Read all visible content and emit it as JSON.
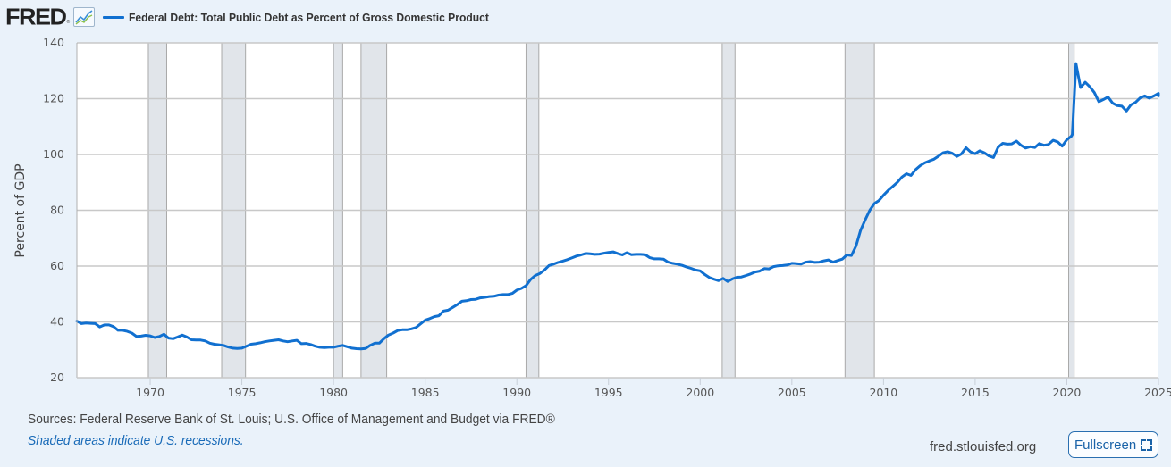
{
  "header": {
    "logo_text": "FRED",
    "logo_reg": "®",
    "logo_icon": "line-chart-icon",
    "legend_label": "Federal Debt: Total Public Debt as Percent of Gross Domestic Product",
    "series_color": "#1170d0"
  },
  "footer": {
    "sources": "Sources: Federal Reserve Bank of St. Louis; U.S. Office of Management and Budget via FRED®",
    "shaded_note": "Shaded areas indicate U.S. recessions.",
    "site": "fred.stlouisfed.org",
    "fullscreen_label": "Fullscreen",
    "fullscreen_icon": "expand-icon"
  },
  "chart_data": {
    "type": "line",
    "title": "Federal Debt: Total Public Debt as Percent of Gross Domestic Product",
    "xlabel": "",
    "ylabel": "Percent of GDP",
    "xlim": [
      1966,
      2025
    ],
    "ylim": [
      20,
      140
    ],
    "yticks": [
      20,
      40,
      60,
      80,
      100,
      120,
      140
    ],
    "xticks": [
      1970,
      1975,
      1980,
      1985,
      1990,
      1995,
      2000,
      2005,
      2010,
      2015,
      2020,
      2025
    ],
    "grid": "horizontal",
    "legend": "top-left",
    "recessions": [
      [
        1969.9,
        1970.9
      ],
      [
        1973.9,
        1975.2
      ],
      [
        1980.0,
        1980.5
      ],
      [
        1981.5,
        1982.9
      ],
      [
        1990.5,
        1991.2
      ],
      [
        2001.2,
        2001.9
      ],
      [
        2007.9,
        2009.5
      ],
      [
        2020.1,
        2020.4
      ]
    ],
    "series": [
      {
        "name": "Federal Debt: Total Public Debt as Percent of Gross Domestic Product",
        "color": "#1170d0",
        "points": [
          [
            1966.0,
            40.3
          ],
          [
            1966.25,
            39.4
          ],
          [
            1966.5,
            39.6
          ],
          [
            1966.75,
            39.5
          ],
          [
            1967.0,
            39.4
          ],
          [
            1967.25,
            38.2
          ],
          [
            1967.5,
            38.9
          ],
          [
            1967.75,
            38.9
          ],
          [
            1968.0,
            38.3
          ],
          [
            1968.25,
            37.0
          ],
          [
            1968.5,
            37.0
          ],
          [
            1968.75,
            36.6
          ],
          [
            1969.0,
            36.0
          ],
          [
            1969.25,
            34.8
          ],
          [
            1969.5,
            34.9
          ],
          [
            1969.75,
            35.2
          ],
          [
            1970.0,
            35.0
          ],
          [
            1970.25,
            34.4
          ],
          [
            1970.5,
            34.8
          ],
          [
            1970.75,
            35.6
          ],
          [
            1971.0,
            34.2
          ],
          [
            1971.25,
            34.0
          ],
          [
            1971.5,
            34.6
          ],
          [
            1971.75,
            35.3
          ],
          [
            1972.0,
            34.6
          ],
          [
            1972.25,
            33.6
          ],
          [
            1972.5,
            33.5
          ],
          [
            1972.75,
            33.5
          ],
          [
            1973.0,
            33.2
          ],
          [
            1973.25,
            32.4
          ],
          [
            1973.5,
            32.0
          ],
          [
            1973.75,
            31.8
          ],
          [
            1974.0,
            31.6
          ],
          [
            1974.25,
            31.0
          ],
          [
            1974.5,
            30.6
          ],
          [
            1974.75,
            30.5
          ],
          [
            1975.0,
            30.6
          ],
          [
            1975.25,
            31.3
          ],
          [
            1975.5,
            32.0
          ],
          [
            1975.75,
            32.2
          ],
          [
            1976.0,
            32.5
          ],
          [
            1976.25,
            32.9
          ],
          [
            1976.5,
            33.2
          ],
          [
            1976.75,
            33.4
          ],
          [
            1977.0,
            33.6
          ],
          [
            1977.25,
            33.2
          ],
          [
            1977.5,
            32.9
          ],
          [
            1977.75,
            33.2
          ],
          [
            1978.0,
            33.4
          ],
          [
            1978.25,
            32.2
          ],
          [
            1978.5,
            32.3
          ],
          [
            1978.75,
            31.9
          ],
          [
            1979.0,
            31.3
          ],
          [
            1979.25,
            30.9
          ],
          [
            1979.5,
            30.8
          ],
          [
            1979.75,
            30.9
          ],
          [
            1980.0,
            30.9
          ],
          [
            1980.25,
            31.3
          ],
          [
            1980.5,
            31.6
          ],
          [
            1980.75,
            31.1
          ],
          [
            1981.0,
            30.6
          ],
          [
            1981.25,
            30.4
          ],
          [
            1981.5,
            30.3
          ],
          [
            1981.75,
            30.5
          ],
          [
            1982.0,
            31.6
          ],
          [
            1982.25,
            32.4
          ],
          [
            1982.5,
            32.4
          ],
          [
            1982.75,
            34.0
          ],
          [
            1983.0,
            35.3
          ],
          [
            1983.25,
            36.0
          ],
          [
            1983.5,
            36.9
          ],
          [
            1983.75,
            37.2
          ],
          [
            1984.0,
            37.2
          ],
          [
            1984.25,
            37.5
          ],
          [
            1984.5,
            38.0
          ],
          [
            1984.75,
            39.3
          ],
          [
            1985.0,
            40.6
          ],
          [
            1985.25,
            41.2
          ],
          [
            1985.5,
            41.9
          ],
          [
            1985.75,
            42.2
          ],
          [
            1986.0,
            43.9
          ],
          [
            1986.25,
            44.2
          ],
          [
            1986.5,
            45.2
          ],
          [
            1986.75,
            46.2
          ],
          [
            1987.0,
            47.4
          ],
          [
            1987.25,
            47.6
          ],
          [
            1987.5,
            48.0
          ],
          [
            1987.75,
            48.1
          ],
          [
            1988.0,
            48.6
          ],
          [
            1988.25,
            48.8
          ],
          [
            1988.5,
            49.1
          ],
          [
            1988.75,
            49.2
          ],
          [
            1989.0,
            49.6
          ],
          [
            1989.25,
            49.8
          ],
          [
            1989.5,
            49.8
          ],
          [
            1989.75,
            50.2
          ],
          [
            1990.0,
            51.4
          ],
          [
            1990.25,
            52.0
          ],
          [
            1990.5,
            53.0
          ],
          [
            1990.75,
            55.2
          ],
          [
            1991.0,
            56.6
          ],
          [
            1991.25,
            57.3
          ],
          [
            1991.5,
            58.6
          ],
          [
            1991.75,
            60.2
          ],
          [
            1992.0,
            60.7
          ],
          [
            1992.25,
            61.3
          ],
          [
            1992.5,
            61.8
          ],
          [
            1992.75,
            62.3
          ],
          [
            1993.0,
            62.9
          ],
          [
            1993.25,
            63.6
          ],
          [
            1993.5,
            64.0
          ],
          [
            1993.75,
            64.5
          ],
          [
            1994.0,
            64.4
          ],
          [
            1994.25,
            64.2
          ],
          [
            1994.5,
            64.3
          ],
          [
            1994.75,
            64.6
          ],
          [
            1995.0,
            64.9
          ],
          [
            1995.25,
            65.1
          ],
          [
            1995.5,
            64.5
          ],
          [
            1995.75,
            64.0
          ],
          [
            1996.0,
            64.8
          ],
          [
            1996.25,
            64.1
          ],
          [
            1996.5,
            64.2
          ],
          [
            1996.75,
            64.2
          ],
          [
            1997.0,
            64.1
          ],
          [
            1997.25,
            63.0
          ],
          [
            1997.5,
            62.6
          ],
          [
            1997.75,
            62.6
          ],
          [
            1998.0,
            62.5
          ],
          [
            1998.25,
            61.4
          ],
          [
            1998.5,
            61.0
          ],
          [
            1998.75,
            60.7
          ],
          [
            1999.0,
            60.3
          ],
          [
            1999.25,
            59.7
          ],
          [
            1999.5,
            59.2
          ],
          [
            1999.75,
            58.6
          ],
          [
            2000.0,
            58.3
          ],
          [
            2000.25,
            57.0
          ],
          [
            2000.5,
            55.9
          ],
          [
            2000.75,
            55.3
          ],
          [
            2001.0,
            54.8
          ],
          [
            2001.25,
            55.6
          ],
          [
            2001.5,
            54.5
          ],
          [
            2001.75,
            55.4
          ],
          [
            2002.0,
            56.0
          ],
          [
            2002.25,
            56.1
          ],
          [
            2002.5,
            56.6
          ],
          [
            2002.75,
            57.2
          ],
          [
            2003.0,
            57.9
          ],
          [
            2003.25,
            58.2
          ],
          [
            2003.5,
            59.1
          ],
          [
            2003.75,
            59.0
          ],
          [
            2004.0,
            59.8
          ],
          [
            2004.25,
            60.1
          ],
          [
            2004.5,
            60.2
          ],
          [
            2004.75,
            60.4
          ],
          [
            2005.0,
            61.0
          ],
          [
            2005.25,
            60.9
          ],
          [
            2005.5,
            60.7
          ],
          [
            2005.75,
            61.4
          ],
          [
            2006.0,
            61.6
          ],
          [
            2006.25,
            61.3
          ],
          [
            2006.5,
            61.4
          ],
          [
            2006.75,
            61.9
          ],
          [
            2007.0,
            62.2
          ],
          [
            2007.25,
            61.4
          ],
          [
            2007.5,
            62.0
          ],
          [
            2007.75,
            62.5
          ],
          [
            2008.0,
            64.0
          ],
          [
            2008.25,
            63.8
          ],
          [
            2008.5,
            67.2
          ],
          [
            2008.75,
            72.8
          ],
          [
            2009.0,
            76.6
          ],
          [
            2009.25,
            80.0
          ],
          [
            2009.5,
            82.4
          ],
          [
            2009.75,
            83.5
          ],
          [
            2010.0,
            85.4
          ],
          [
            2010.25,
            87.1
          ],
          [
            2010.5,
            88.5
          ],
          [
            2010.75,
            90.0
          ],
          [
            2011.0,
            91.9
          ],
          [
            2011.25,
            93.1
          ],
          [
            2011.5,
            92.5
          ],
          [
            2011.75,
            94.6
          ],
          [
            2012.0,
            96.0
          ],
          [
            2012.25,
            97.0
          ],
          [
            2012.5,
            97.7
          ],
          [
            2012.75,
            98.3
          ],
          [
            2013.0,
            99.4
          ],
          [
            2013.25,
            100.6
          ],
          [
            2013.5,
            101.0
          ],
          [
            2013.75,
            100.4
          ],
          [
            2014.0,
            99.3
          ],
          [
            2014.25,
            100.2
          ],
          [
            2014.5,
            102.4
          ],
          [
            2014.75,
            100.9
          ],
          [
            2015.0,
            100.3
          ],
          [
            2015.25,
            101.3
          ],
          [
            2015.5,
            100.6
          ],
          [
            2015.75,
            99.5
          ],
          [
            2016.0,
            98.9
          ],
          [
            2016.25,
            102.6
          ],
          [
            2016.5,
            104.0
          ],
          [
            2016.75,
            103.7
          ],
          [
            2017.0,
            103.8
          ],
          [
            2017.25,
            104.8
          ],
          [
            2017.5,
            103.3
          ],
          [
            2017.75,
            102.3
          ],
          [
            2018.0,
            102.8
          ],
          [
            2018.25,
            102.5
          ],
          [
            2018.5,
            103.9
          ],
          [
            2018.75,
            103.3
          ],
          [
            2019.0,
            103.6
          ],
          [
            2019.25,
            105.1
          ],
          [
            2019.5,
            104.5
          ],
          [
            2019.75,
            103.0
          ],
          [
            2020.0,
            105.3
          ],
          [
            2020.25,
            106.6
          ],
          [
            2020.3,
            107.2
          ],
          [
            2020.5,
            132.6
          ],
          [
            2020.75,
            124.0
          ],
          [
            2021.0,
            125.9
          ],
          [
            2021.25,
            124.3
          ],
          [
            2021.5,
            122.2
          ],
          [
            2021.75,
            118.9
          ],
          [
            2022.0,
            119.7
          ],
          [
            2022.25,
            120.6
          ],
          [
            2022.5,
            118.4
          ],
          [
            2022.75,
            117.5
          ],
          [
            2023.0,
            117.3
          ],
          [
            2023.25,
            115.6
          ],
          [
            2023.5,
            117.8
          ],
          [
            2023.75,
            118.7
          ],
          [
            2024.0,
            120.3
          ],
          [
            2024.25,
            121.0
          ],
          [
            2024.5,
            120.2
          ],
          [
            2024.75,
            121.0
          ],
          [
            2025.0,
            121.9
          ],
          [
            2025.25,
            121.0
          ]
        ]
      }
    ]
  }
}
